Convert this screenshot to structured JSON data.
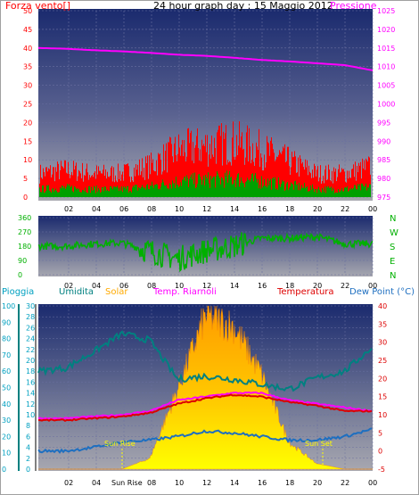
{
  "title": "24 hour graph day : 15 Maggio 2012",
  "colors": {
    "wind": "#ff0000",
    "gust_fill": "#ff0000",
    "avg_wind": "#00a000",
    "pressure": "#ff00ff",
    "direction": "#00b000",
    "humidity": "#008080",
    "solar": "#ffaa00",
    "windchill": "#ff00ff",
    "temperature": "#dd0000",
    "dewpoint": "#1e6fc0",
    "rain": "#00a0c0",
    "sunline": "#ffff00",
    "label_left_wind": "#ff0000",
    "label_title": "#000000"
  },
  "charts": {
    "wind_pressure": {
      "left_label": "Forza vento[]",
      "right_label": "Pressione",
      "left_ticks": [
        "50",
        "45",
        "40",
        "35",
        "30",
        "25",
        "20",
        "15",
        "10",
        "5",
        "0"
      ],
      "right_ticks": [
        "1025",
        "1020",
        "1015",
        "1010",
        "1005",
        "1000",
        "995",
        "990",
        "985",
        "980",
        "975"
      ],
      "x_ticks": [
        "02",
        "04",
        "06",
        "08",
        "10",
        "12",
        "14",
        "16",
        "18",
        "20",
        "22",
        "00"
      ]
    },
    "direction": {
      "left_ticks": [
        "360",
        "270",
        "180",
        "90",
        "0"
      ],
      "right_letters": [
        "N",
        "W",
        "S",
        "E",
        "N"
      ],
      "x_ticks": [
        "02",
        "04",
        "06",
        "08",
        "10",
        "12",
        "14",
        "16",
        "18",
        "20",
        "22",
        "00"
      ]
    },
    "weather": {
      "labels": {
        "rain": "Pioggia",
        "humidity": "Umidita",
        "solar": "Solar",
        "windchill": "Temp. Riarnoli",
        "temperature": "Temperatura",
        "dewpoint": "Dew Point (°C)"
      },
      "rain_ticks": [
        "30",
        "28",
        "26",
        "24",
        "22",
        "20",
        "18",
        "16",
        "14",
        "12",
        "10",
        "8",
        "6",
        "4",
        "2",
        "0"
      ],
      "humidity_ticks": [
        "100",
        "90",
        "80",
        "70",
        "60",
        "50",
        "40",
        "30",
        "20",
        "10",
        "0"
      ],
      "temp_ticks": [
        "40",
        "35",
        "30",
        "25",
        "20",
        "15",
        "10",
        "5",
        "0",
        "-5"
      ],
      "x_ticks": [
        "02",
        "04",
        "Sun Rise",
        "08",
        "10",
        "12",
        "14",
        "16",
        "18",
        "20",
        "22",
        "00"
      ],
      "sun_rise_label": "Sun Rise",
      "sun_set_label": "Sun Set"
    }
  },
  "chart_data": [
    {
      "type": "line",
      "title": "24 hour graph day : 15 Maggio 2012",
      "x": [
        "00",
        "02",
        "04",
        "06",
        "08",
        "10",
        "12",
        "14",
        "16",
        "18",
        "20",
        "22",
        "00"
      ],
      "series": [
        {
          "name": "Pressione",
          "axis": "right",
          "values": [
            1015.0,
            1014.8,
            1014.4,
            1014.1,
            1013.7,
            1013.2,
            1012.9,
            1012.4,
            1011.8,
            1011.4,
            1010.9,
            1010.4,
            1009.0
          ]
        },
        {
          "name": "Forza vento[]",
          "axis": "left",
          "values": [
            6,
            7,
            6,
            6,
            8,
            12,
            13,
            14,
            12,
            9,
            6,
            6,
            8
          ]
        }
      ],
      "ylim_left": [
        0,
        50
      ],
      "ylim_right": [
        975,
        1025
      ]
    },
    {
      "type": "line",
      "x": [
        "00",
        "02",
        "04",
        "06",
        "08",
        "10",
        "12",
        "14",
        "16",
        "18",
        "20",
        "22",
        "00"
      ],
      "series": [
        {
          "values": [
            180,
            180,
            195,
            200,
            150,
            100,
            150,
            180,
            230,
            230,
            240,
            195,
            195
          ]
        }
      ],
      "ylim": [
        0,
        360
      ]
    },
    {
      "type": "line",
      "x": [
        "00",
        "02",
        "04",
        "06",
        "08",
        "10",
        "12",
        "14",
        "16",
        "18",
        "20",
        "22",
        "00"
      ],
      "series": [
        {
          "name": "Umidita",
          "axis": "humidity",
          "values": [
            60,
            62,
            72,
            83,
            79,
            55,
            57,
            55,
            52,
            49,
            56,
            60,
            75
          ]
        },
        {
          "name": "Solar",
          "axis": "rain",
          "values": [
            0,
            0,
            0,
            0,
            2,
            15,
            29,
            27,
            18,
            5,
            1,
            0,
            0
          ]
        },
        {
          "name": "Temp. Riarnoli",
          "axis": "temp",
          "values": [
            9,
            9,
            9.5,
            10,
            11,
            14,
            15,
            16,
            16,
            14,
            13,
            12,
            11
          ]
        },
        {
          "name": "Temperatura",
          "axis": "temp",
          "values": [
            8.5,
            8.5,
            9,
            9.5,
            10.5,
            13,
            14.5,
            15.5,
            15,
            13.5,
            12.5,
            11,
            11
          ]
        },
        {
          "name": "Dew Point (°C)",
          "axis": "temp",
          "values": [
            0,
            0,
            1,
            2.5,
            3,
            4,
            5.5,
            5,
            4,
            3,
            3,
            4,
            6
          ]
        }
      ],
      "ylim_rain": [
        0,
        30
      ],
      "ylim_humidity": [
        0,
        100
      ],
      "ylim_temp": [
        -5,
        40
      ]
    }
  ]
}
